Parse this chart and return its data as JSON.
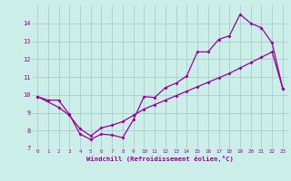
{
  "xlabel": "Windchill (Refroidissement éolien,°C)",
  "background_color": "#cceee8",
  "grid_color": "#aacccc",
  "line_color": "#990099",
  "line1_x": [
    0,
    1,
    2,
    3,
    4,
    5,
    6,
    7,
    8,
    9,
    10,
    11,
    12,
    13,
    14,
    15,
    16,
    17,
    18,
    19,
    20,
    21,
    22,
    23
  ],
  "line1_y": [
    9.9,
    9.7,
    9.7,
    8.9,
    7.8,
    7.5,
    7.8,
    7.75,
    7.6,
    8.6,
    9.9,
    9.85,
    10.4,
    10.65,
    11.05,
    12.4,
    12.4,
    13.1,
    13.3,
    14.5,
    14.0,
    13.75,
    12.9,
    10.35
  ],
  "line2_x": [
    0,
    2,
    3,
    4,
    5,
    6,
    7,
    8,
    9,
    10,
    11,
    12,
    13,
    14,
    15,
    16,
    17,
    18,
    19,
    20,
    21,
    22,
    23
  ],
  "line2_y": [
    9.9,
    9.3,
    8.85,
    8.1,
    7.7,
    8.15,
    8.3,
    8.5,
    8.85,
    9.2,
    9.45,
    9.7,
    9.95,
    10.2,
    10.45,
    10.7,
    10.95,
    11.2,
    11.5,
    11.8,
    12.1,
    12.4,
    10.35
  ],
  "xlim": [
    -0.5,
    23.5
  ],
  "ylim": [
    7,
    15
  ],
  "yticks": [
    7,
    8,
    9,
    10,
    11,
    12,
    13,
    14
  ],
  "xticks": [
    0,
    1,
    2,
    3,
    4,
    5,
    6,
    7,
    8,
    9,
    10,
    11,
    12,
    13,
    14,
    15,
    16,
    17,
    18,
    19,
    20,
    21,
    22,
    23
  ]
}
